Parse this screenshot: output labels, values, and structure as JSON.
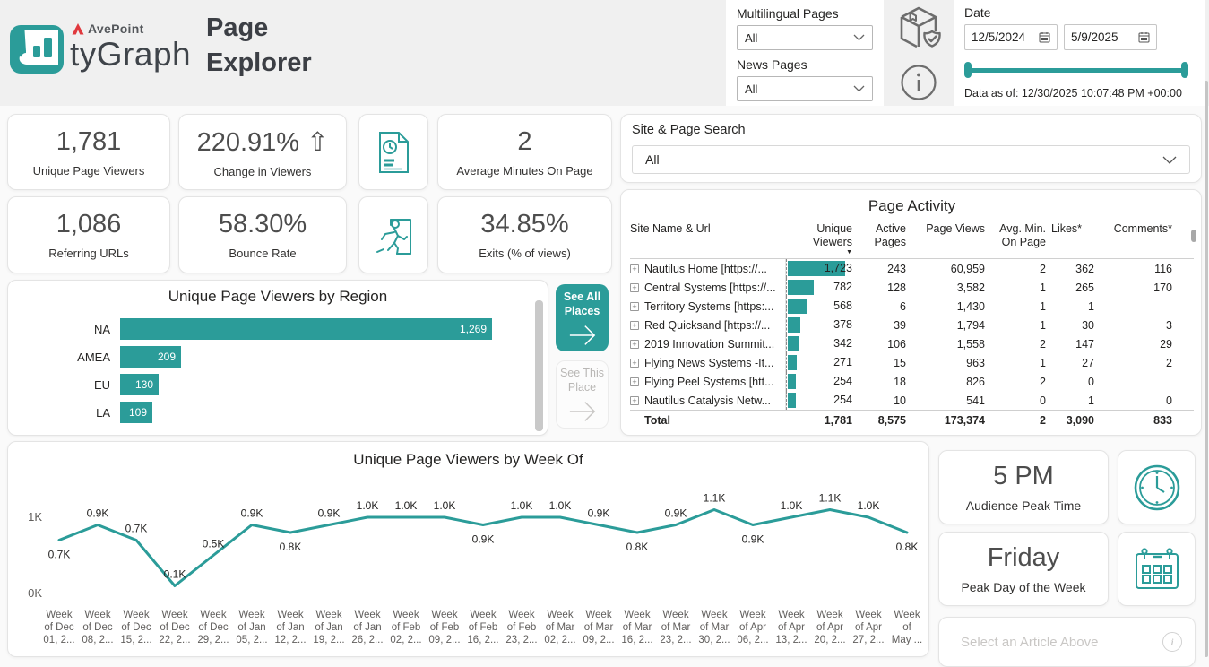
{
  "colors": {
    "accent": "#2b9c99",
    "header_bg": "#f0f0f0",
    "gray_icon": "#6d6d6d"
  },
  "header": {
    "brand": {
      "company": "AvePoint",
      "product": "tyGraph"
    },
    "title_line1": "Page",
    "title_line2": "Explorer",
    "filters": {
      "multilingual_label": "Multilingual Pages",
      "multilingual_value": "All",
      "news_label": "News Pages",
      "news_value": "All"
    },
    "date": {
      "label": "Date",
      "start": "12/5/2024",
      "end": "5/9/2025",
      "data_as_of": "Data as of: 12/30/2025 10:07:48 PM +00:00"
    }
  },
  "kpis": [
    {
      "value": "1,781",
      "label": "Unique Page Viewers"
    },
    {
      "value": "220.91%",
      "arrow": "⇧",
      "label": "Change in Viewers"
    },
    {
      "value": "2",
      "label": "Average Minutes On Page"
    },
    {
      "value": "1,086",
      "label": "Referring URLs"
    },
    {
      "value": "58.30%",
      "label": "Bounce Rate"
    },
    {
      "value": "34.85%",
      "label": "Exits (% of views)"
    }
  ],
  "search": {
    "label": "Site & Page Search",
    "value": "All"
  },
  "table": {
    "title": "Page Activity",
    "columns": [
      "Site Name & Url",
      "Unique Viewers",
      "Active Pages",
      "Page Views",
      "Avg. Min. On Page",
      "Likes*",
      "Comments*"
    ],
    "max_unique": 1723,
    "rows": [
      {
        "name": "Nautilus Home [https://...",
        "unique": 1723,
        "unique_fmt": "1,723",
        "active": "243",
        "views": "60,959",
        "avg": "2",
        "likes": "362",
        "comments": "116"
      },
      {
        "name": "Central Systems [https://...",
        "unique": 782,
        "unique_fmt": "782",
        "active": "128",
        "views": "3,582",
        "avg": "1",
        "likes": "265",
        "comments": "170"
      },
      {
        "name": "Territory Systems [https:...",
        "unique": 568,
        "unique_fmt": "568",
        "active": "6",
        "views": "1,430",
        "avg": "1",
        "likes": "1",
        "comments": ""
      },
      {
        "name": "Red Quicksand [https://...",
        "unique": 378,
        "unique_fmt": "378",
        "active": "39",
        "views": "1,794",
        "avg": "1",
        "likes": "30",
        "comments": "3"
      },
      {
        "name": "2019 Innovation Summit...",
        "unique": 342,
        "unique_fmt": "342",
        "active": "106",
        "views": "1,558",
        "avg": "2",
        "likes": "147",
        "comments": "29"
      },
      {
        "name": "Flying News Systems -It...",
        "unique": 271,
        "unique_fmt": "271",
        "active": "15",
        "views": "963",
        "avg": "1",
        "likes": "27",
        "comments": "2"
      },
      {
        "name": "Flying Peel Systems [htt...",
        "unique": 254,
        "unique_fmt": "254",
        "active": "18",
        "views": "826",
        "avg": "2",
        "likes": "0",
        "comments": ""
      },
      {
        "name": "Nautilus Catalysis Netw...",
        "unique": 254,
        "unique_fmt": "254",
        "active": "10",
        "views": "541",
        "avg": "0",
        "likes": "1",
        "comments": "0"
      }
    ],
    "total": {
      "name": "Total",
      "unique": "1,781",
      "active": "8,575",
      "views": "173,374",
      "avg": "2",
      "likes": "3,090",
      "comments": "833"
    }
  },
  "buttons": {
    "see_all": "See All Places",
    "see_this": "See This Place"
  },
  "chart_data": [
    {
      "type": "bar",
      "orientation": "horizontal",
      "title": "Unique Page Viewers by Region",
      "categories": [
        "NA",
        "AMEA",
        "EU",
        "LA"
      ],
      "values": [
        1269,
        209,
        130,
        109
      ],
      "value_labels": [
        "1,269",
        "209",
        "130",
        "109"
      ],
      "xlabel": "",
      "ylabel": "",
      "grid": false,
      "legend": false
    },
    {
      "type": "line",
      "title": "Unique Page Viewers by Week Of",
      "ylim": [
        0,
        1.1
      ],
      "ytick_labels": [
        "0K",
        "1K"
      ],
      "yticks": [
        0,
        1
      ],
      "grid": false,
      "legend": false,
      "categories": [
        [
          "Week",
          "of Dec",
          "01, 2..."
        ],
        [
          "Week",
          "of Dec",
          "08, 2..."
        ],
        [
          "Week",
          "of Dec",
          "15, 2..."
        ],
        [
          "Week",
          "of Dec",
          "22, 2..."
        ],
        [
          "Week",
          "of Dec",
          "29, 2..."
        ],
        [
          "Week",
          "of Jan",
          "05, 2..."
        ],
        [
          "Week",
          "of Jan",
          "12, 2..."
        ],
        [
          "Week",
          "of Jan",
          "19, 2..."
        ],
        [
          "Week",
          "of Jan",
          "26, 2..."
        ],
        [
          "Week",
          "of Feb",
          "02, 2..."
        ],
        [
          "Week",
          "of Feb",
          "09, 2..."
        ],
        [
          "Week",
          "of Feb",
          "16, 2..."
        ],
        [
          "Week",
          "of Feb",
          "23, 2..."
        ],
        [
          "Week",
          "of Mar",
          "02, 2..."
        ],
        [
          "Week",
          "of Mar",
          "09, 2..."
        ],
        [
          "Week",
          "of Mar",
          "16, 2..."
        ],
        [
          "Week",
          "of Mar",
          "23, 2..."
        ],
        [
          "Week",
          "of Mar",
          "30, 2..."
        ],
        [
          "Week",
          "of Apr",
          "06, 2..."
        ],
        [
          "Week",
          "of Apr",
          "13, 2..."
        ],
        [
          "Week",
          "of Apr",
          "20, 2..."
        ],
        [
          "Week",
          "of Apr",
          "27, 2..."
        ],
        [
          "Week",
          "of",
          "May ..."
        ]
      ],
      "values": [
        0.7,
        0.9,
        0.7,
        0.1,
        0.5,
        0.9,
        0.8,
        0.9,
        1.0,
        1.0,
        1.0,
        0.9,
        1.0,
        1.0,
        0.9,
        0.8,
        0.9,
        1.1,
        0.9,
        1.0,
        1.1,
        1.0,
        0.8
      ],
      "point_labels": [
        "0.7K",
        "0.9K",
        "0.7K",
        "0.1K",
        "0.5K",
        "0.9K",
        "0.8K",
        "0.9K",
        "1.0K",
        "1.0K",
        "1.0K",
        "0.9K",
        "1.0K",
        "1.0K",
        "0.9K",
        "0.8K",
        "0.9K",
        "1.1K",
        "0.9K",
        "1.0K",
        "1.1K",
        "1.0K",
        "0.8K"
      ],
      "labels_below_indices": [
        0,
        6,
        11,
        15,
        18,
        22
      ]
    }
  ],
  "peak": {
    "time": "5 PM",
    "time_label": "Audience Peak Time",
    "day": "Friday",
    "day_label": "Peak Day of the Week"
  },
  "article_bar": {
    "text": "Select an Article Above"
  }
}
